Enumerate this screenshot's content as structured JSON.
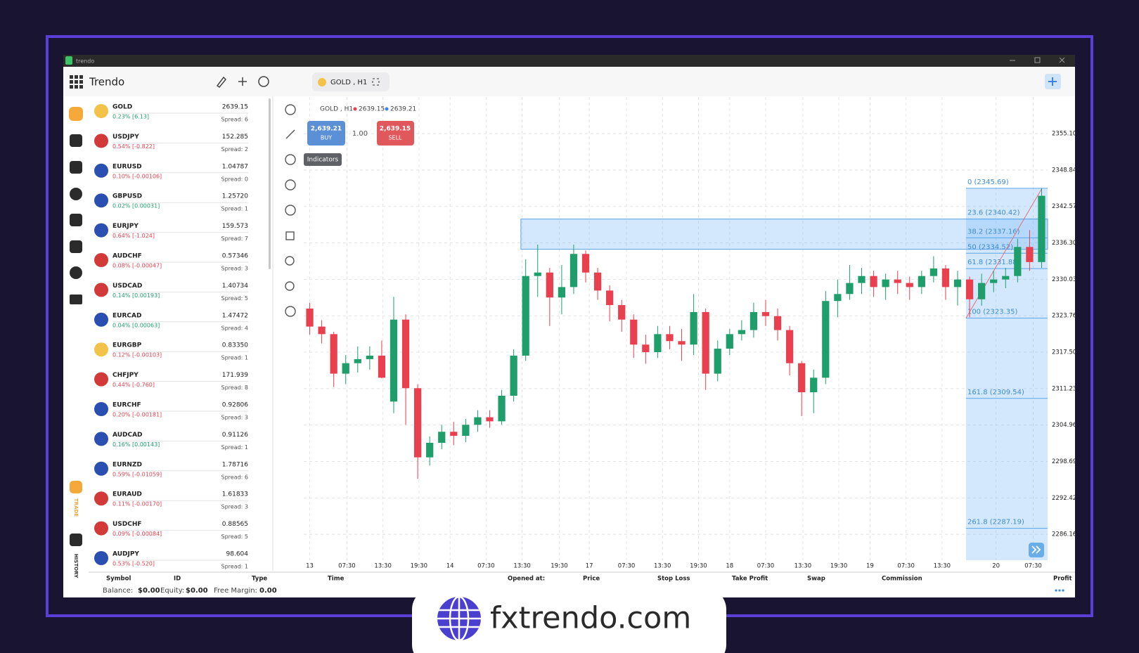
{
  "window": {
    "title": "trendo"
  },
  "header": {
    "app_name": "Trendo",
    "tab": "GOLD , H1"
  },
  "sidebar": {
    "trade": "TRADE",
    "history": "HISTORY"
  },
  "symbols": [
    {
      "symbol": "GOLD",
      "change": "0.23% [6.13]",
      "price": "2639.15",
      "spread": "Spread: 6"
    },
    {
      "symbol": "USDJPY",
      "change": "0.54% [-0.822]",
      "price": "152.285",
      "spread": "Spread: 2"
    },
    {
      "symbol": "EURUSD",
      "change": "0.10% [-0.00106]",
      "price": "1.04787",
      "spread": "Spread: 0"
    },
    {
      "symbol": "GBPUSD",
      "change": "0.02% [0.00031]",
      "price": "1.25720",
      "spread": "Spread: 1"
    },
    {
      "symbol": "EURJPY",
      "change": "0.64% [-1.024]",
      "price": "159.573",
      "spread": "Spread: 7"
    },
    {
      "symbol": "AUDCHF",
      "change": "0.08% [-0.00047]",
      "price": "0.57346",
      "spread": "Spread: 3"
    },
    {
      "symbol": "USDCAD",
      "change": "0.14% [0.00193]",
      "price": "1.40734",
      "spread": "Spread: 5"
    },
    {
      "symbol": "EURCAD",
      "change": "0.04% [0.00063]",
      "price": "1.47472",
      "spread": "Spread: 4"
    },
    {
      "symbol": "EURGBP",
      "change": "0.12% [-0.00103]",
      "price": "0.83350",
      "spread": "Spread: 1"
    },
    {
      "symbol": "CHFJPY",
      "change": "0.44% [-0.760]",
      "price": "171.939",
      "spread": "Spread: 8"
    },
    {
      "symbol": "EURCHF",
      "change": "0.20% [-0.00181]",
      "price": "0.92806",
      "spread": "Spread: 3"
    },
    {
      "symbol": "AUDCAD",
      "change": "0.16% [0.00143]",
      "price": "0.91126",
      "spread": "Spread: 1"
    },
    {
      "symbol": "EURNZD",
      "change": "0.59% [-0.01059]",
      "price": "1.78716",
      "spread": "Spread: 6"
    },
    {
      "symbol": "EURAUD",
      "change": "0.11% [-0.00170]",
      "price": "1.61833",
      "spread": "Spread: 3"
    },
    {
      "symbol": "USDCHF",
      "change": "0.09% [-0.00084]",
      "price": "0.88565",
      "spread": "Spread: 5"
    },
    {
      "symbol": "AUDJPY",
      "change": "0.53% [-0.520]",
      "price": "98.604",
      "spread": "Spread: 1"
    }
  ],
  "chart_header": {
    "label": "GOLD , H1",
    "bid": "2639.15",
    "ask": "2639.21",
    "buy_price": "2,639.21",
    "buy": "BUY",
    "quantity": "1.00",
    "sell_price": "2,639.15",
    "sell": "SELL",
    "tooltip": "Indicators"
  },
  "chart_data": {
    "type": "candlestick",
    "up_color": "#1e9e6a",
    "down_color": "#e8404f",
    "grid": true,
    "candles": [
      [
        2325.0,
        2326.0,
        2320.5,
        2321.9
      ],
      [
        2321.9,
        2323.0,
        2319.0,
        2320.6
      ],
      [
        2320.6,
        2321.0,
        2311.5,
        2313.8
      ],
      [
        2313.8,
        2317.0,
        2312.0,
        2315.6
      ],
      [
        2315.6,
        2318.5,
        2314.0,
        2316.3
      ],
      [
        2316.3,
        2318.5,
        2314.5,
        2316.9
      ],
      [
        2316.9,
        2319.5,
        2313.0,
        2313.1
      ],
      [
        2309.0,
        2327.0,
        2307.0,
        2323.1
      ],
      [
        2323.1,
        2324.0,
        2305.0,
        2311.3
      ],
      [
        2311.3,
        2312.0,
        2295.7,
        2299.4
      ],
      [
        2299.4,
        2303.0,
        2298.0,
        2301.9
      ],
      [
        2301.9,
        2305.0,
        2300.8,
        2303.8
      ],
      [
        2303.8,
        2305.5,
        2301.5,
        2303.1
      ],
      [
        2303.1,
        2306.0,
        2302.0,
        2305.0
      ],
      [
        2305.0,
        2307.5,
        2303.8,
        2306.3
      ],
      [
        2306.3,
        2307.5,
        2304.5,
        2305.6
      ],
      [
        2305.6,
        2311.0,
        2305.0,
        2310.0
      ],
      [
        2310.0,
        2318.0,
        2309.0,
        2316.9
      ],
      [
        2316.9,
        2333.5,
        2316.0,
        2330.6
      ],
      [
        2330.6,
        2336.0,
        2327.0,
        2331.2
      ],
      [
        2331.2,
        2332.0,
        2322.0,
        2326.9
      ],
      [
        2326.9,
        2332.5,
        2324.0,
        2328.7
      ],
      [
        2328.7,
        2336.0,
        2327.5,
        2334.4
      ],
      [
        2334.4,
        2335.0,
        2329.5,
        2331.2
      ],
      [
        2331.2,
        2332.0,
        2326.5,
        2328.1
      ],
      [
        2328.1,
        2329.0,
        2322.8,
        2325.6
      ],
      [
        2325.6,
        2326.5,
        2321.0,
        2323.1
      ],
      [
        2323.1,
        2324.0,
        2316.5,
        2318.8
      ],
      [
        2318.8,
        2320.5,
        2315.5,
        2317.5
      ],
      [
        2317.5,
        2322.0,
        2316.5,
        2320.6
      ],
      [
        2320.6,
        2322.0,
        2318.0,
        2319.4
      ],
      [
        2319.4,
        2321.5,
        2316.0,
        2318.8
      ],
      [
        2318.8,
        2327.5,
        2317.0,
        2324.4
      ],
      [
        2324.4,
        2325.0,
        2311.0,
        2313.8
      ],
      [
        2313.8,
        2319.5,
        2312.5,
        2318.1
      ],
      [
        2318.1,
        2321.5,
        2317.0,
        2320.6
      ],
      [
        2320.6,
        2323.0,
        2319.5,
        2321.3
      ],
      [
        2321.3,
        2326.0,
        2320.0,
        2324.4
      ],
      [
        2324.4,
        2326.5,
        2322.0,
        2323.7
      ],
      [
        2323.7,
        2325.0,
        2319.5,
        2321.3
      ],
      [
        2321.3,
        2322.0,
        2313.5,
        2315.6
      ],
      [
        2315.6,
        2316.0,
        2306.5,
        2310.6
      ],
      [
        2310.6,
        2314.5,
        2307.0,
        2313.1
      ],
      [
        2313.1,
        2328.0,
        2312.0,
        2326.3
      ],
      [
        2326.3,
        2330.0,
        2323.5,
        2327.5
      ],
      [
        2327.5,
        2332.5,
        2326.5,
        2329.4
      ],
      [
        2329.4,
        2332.0,
        2327.5,
        2330.6
      ],
      [
        2330.6,
        2331.5,
        2327.0,
        2328.7
      ],
      [
        2328.7,
        2331.0,
        2326.5,
        2330.0
      ],
      [
        2330.0,
        2331.5,
        2327.5,
        2329.4
      ],
      [
        2329.4,
        2330.5,
        2326.5,
        2328.7
      ],
      [
        2328.7,
        2331.5,
        2327.5,
        2330.6
      ],
      [
        2330.6,
        2334.0,
        2329.5,
        2331.9
      ],
      [
        2331.9,
        2332.5,
        2326.5,
        2328.7
      ],
      [
        2328.7,
        2331.5,
        2325.5,
        2330.0
      ],
      [
        2330.0,
        2330.5,
        2323.5,
        2326.6
      ],
      [
        2326.6,
        2331.0,
        2325.5,
        2329.4
      ],
      [
        2329.4,
        2331.5,
        2327.8,
        2330.0
      ],
      [
        2330.0,
        2332.0,
        2328.5,
        2330.6
      ],
      [
        2330.6,
        2337.0,
        2329.5,
        2335.6
      ],
      [
        2335.6,
        2338.5,
        2331.5,
        2333.0
      ],
      [
        2333.0,
        2345.7,
        2332.0,
        2344.4
      ]
    ],
    "xlim": [
      0,
      62
    ],
    "xticks": [
      {
        "value": 0.5,
        "label": "13"
      },
      {
        "value": 3.6,
        "label": "07:30"
      },
      {
        "value": 6.6,
        "label": "13:30"
      },
      {
        "value": 9.6,
        "label": "19:30"
      },
      {
        "value": 12.2,
        "label": "14"
      },
      {
        "value": 15.2,
        "label": "07:30"
      },
      {
        "value": 18.2,
        "label": "13:30"
      },
      {
        "value": 21.3,
        "label": "19:30"
      },
      {
        "value": 23.8,
        "label": "17"
      },
      {
        "value": 26.9,
        "label": "07:30"
      },
      {
        "value": 29.9,
        "label": "13:30"
      },
      {
        "value": 32.9,
        "label": "19:30"
      },
      {
        "value": 35.5,
        "label": "18"
      },
      {
        "value": 38.5,
        "label": "07:30"
      },
      {
        "value": 41.6,
        "label": "13:30"
      },
      {
        "value": 44.6,
        "label": "19:30"
      },
      {
        "value": 47.2,
        "label": "19"
      },
      {
        "value": 50.2,
        "label": "07:30"
      },
      {
        "value": 53.2,
        "label": "13:30"
      },
      {
        "value": 57.7,
        "label": "20"
      },
      {
        "value": 60.8,
        "label": "07:30"
      }
    ],
    "ylim": [
      2281.7,
      2361.4
    ],
    "yticks": [
      {
        "value": 2355.1,
        "label": "2355.10"
      },
      2348.84,
      2342.57,
      {
        "value": 2336.3,
        "label": "2336.30"
      },
      2330.03,
      2323.76,
      {
        "value": 2317.5,
        "label": "2317.50"
      },
      2311.23,
      2304.96,
      2298.69,
      2292.42,
      2286.16
    ],
    "zone": {
      "low": 2335.2,
      "high": 2340.4
    },
    "fibonacci": [
      {
        "label": "0 (2345.69)",
        "value": 2345.69
      },
      {
        "label": "23.6 (2340.42)",
        "value": 2340.42
      },
      {
        "label": "38.2 (2337.16)",
        "value": 2337.16
      },
      {
        "label": "50 (2334.52)",
        "value": 2334.52
      },
      {
        "label": "61.8 (2331.88)",
        "value": 2331.88
      },
      {
        "label": "100 (2323.35)",
        "value": 2323.35
      },
      {
        "label": "161.8 (2309.54)",
        "value": 2309.54
      },
      {
        "label": "261.8 (2287.19)",
        "value": 2287.19
      }
    ]
  },
  "positions_table": {
    "columns": [
      "Symbol",
      "ID",
      "Type",
      "Time",
      "Opened at:",
      "Price",
      "Stop Loss",
      "Take Profit",
      "Swap",
      "Commission",
      "Profit"
    ]
  },
  "account": {
    "balance_label": "Balance:",
    "balance": "$0.00",
    "equity_label": "Equity:",
    "equity": "$0.00",
    "free_margin_label": "Free Margin:",
    "free_margin": "0.00"
  },
  "footer": {
    "brand": "fxtrendo.com"
  }
}
